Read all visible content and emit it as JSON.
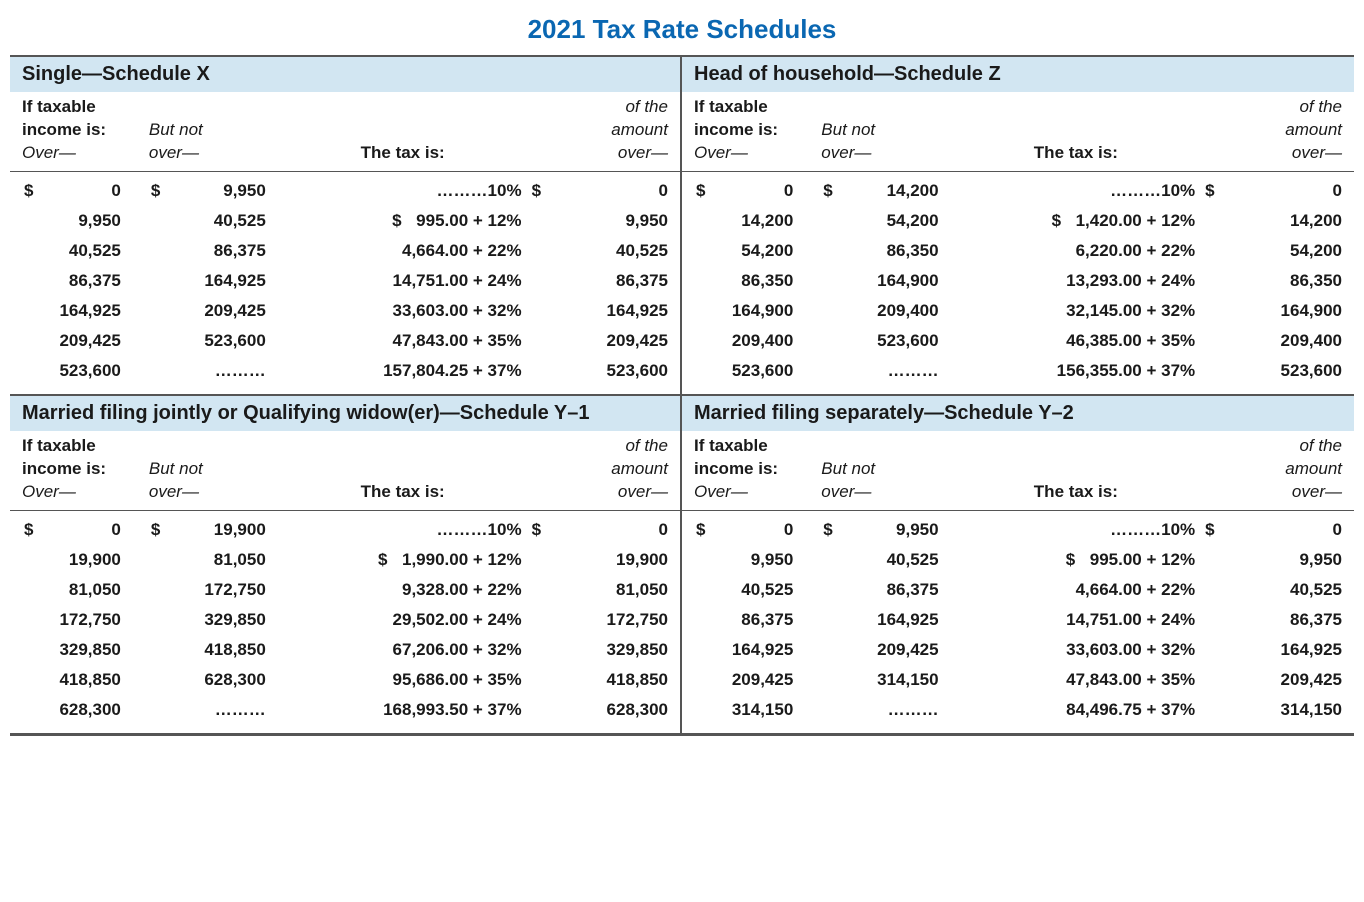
{
  "title": "2021 Tax Rate Schedules",
  "colors": {
    "title": "#0a67b2",
    "header_bg": "#d2e6f2",
    "border": "#555555",
    "text": "#1a1a1a",
    "page_bg": "#ffffff"
  },
  "headers": {
    "col1_line1": "If taxable",
    "col1_line2": "income is:",
    "col1_line3": "Over—",
    "col2_line1": "But not",
    "col2_line2": "over—",
    "col3": "The tax is:",
    "col4_line1": "of the",
    "col4_line2": "amount",
    "col4_line3": "over—"
  },
  "dots_placeholder": "………",
  "schedules": [
    {
      "title": "Single—Schedule X",
      "position": "top-left",
      "rows": [
        {
          "over_dollar": "$",
          "over": "0",
          "butnot_dollar": "$",
          "butnot": "9,950",
          "tax_dollar": "",
          "tax": "………10%",
          "ofamt_dollar": "$",
          "ofamt": "0"
        },
        {
          "over_dollar": "",
          "over": "9,950",
          "butnot_dollar": "",
          "butnot": "40,525",
          "tax_dollar": "$",
          "tax": "995.00 + 12%",
          "ofamt_dollar": "",
          "ofamt": "9,950"
        },
        {
          "over_dollar": "",
          "over": "40,525",
          "butnot_dollar": "",
          "butnot": "86,375",
          "tax_dollar": "",
          "tax": "4,664.00 + 22%",
          "ofamt_dollar": "",
          "ofamt": "40,525"
        },
        {
          "over_dollar": "",
          "over": "86,375",
          "butnot_dollar": "",
          "butnot": "164,925",
          "tax_dollar": "",
          "tax": "14,751.00 + 24%",
          "ofamt_dollar": "",
          "ofamt": "86,375"
        },
        {
          "over_dollar": "",
          "over": "164,925",
          "butnot_dollar": "",
          "butnot": "209,425",
          "tax_dollar": "",
          "tax": "33,603.00 + 32%",
          "ofamt_dollar": "",
          "ofamt": "164,925"
        },
        {
          "over_dollar": "",
          "over": "209,425",
          "butnot_dollar": "",
          "butnot": "523,600",
          "tax_dollar": "",
          "tax": "47,843.00 + 35%",
          "ofamt_dollar": "",
          "ofamt": "209,425"
        },
        {
          "over_dollar": "",
          "over": "523,600",
          "butnot_dollar": "",
          "butnot": "………",
          "tax_dollar": "",
          "tax": "157,804.25 + 37%",
          "ofamt_dollar": "",
          "ofamt": "523,600"
        }
      ]
    },
    {
      "title": "Head of household—Schedule Z",
      "position": "top-right",
      "rows": [
        {
          "over_dollar": "$",
          "over": "0",
          "butnot_dollar": "$",
          "butnot": "14,200",
          "tax_dollar": "",
          "tax": "………10%",
          "ofamt_dollar": "$",
          "ofamt": "0"
        },
        {
          "over_dollar": "",
          "over": "14,200",
          "butnot_dollar": "",
          "butnot": "54,200",
          "tax_dollar": "$",
          "tax": "1,420.00 + 12%",
          "ofamt_dollar": "",
          "ofamt": "14,200"
        },
        {
          "over_dollar": "",
          "over": "54,200",
          "butnot_dollar": "",
          "butnot": "86,350",
          "tax_dollar": "",
          "tax": "6,220.00 + 22%",
          "ofamt_dollar": "",
          "ofamt": "54,200"
        },
        {
          "over_dollar": "",
          "over": "86,350",
          "butnot_dollar": "",
          "butnot": "164,900",
          "tax_dollar": "",
          "tax": "13,293.00 + 24%",
          "ofamt_dollar": "",
          "ofamt": "86,350"
        },
        {
          "over_dollar": "",
          "over": "164,900",
          "butnot_dollar": "",
          "butnot": "209,400",
          "tax_dollar": "",
          "tax": "32,145.00 + 32%",
          "ofamt_dollar": "",
          "ofamt": "164,900"
        },
        {
          "over_dollar": "",
          "over": "209,400",
          "butnot_dollar": "",
          "butnot": "523,600",
          "tax_dollar": "",
          "tax": "46,385.00 + 35%",
          "ofamt_dollar": "",
          "ofamt": "209,400"
        },
        {
          "over_dollar": "",
          "over": "523,600",
          "butnot_dollar": "",
          "butnot": "………",
          "tax_dollar": "",
          "tax": "156,355.00 + 37%",
          "ofamt_dollar": "",
          "ofamt": "523,600"
        }
      ]
    },
    {
      "title": "Married filing jointly or Qualifying widow(er)—Schedule Y–1",
      "position": "bottom-left",
      "rows": [
        {
          "over_dollar": "$",
          "over": "0",
          "butnot_dollar": "$",
          "butnot": "19,900",
          "tax_dollar": "",
          "tax": "………10%",
          "ofamt_dollar": "$",
          "ofamt": "0"
        },
        {
          "over_dollar": "",
          "over": "19,900",
          "butnot_dollar": "",
          "butnot": "81,050",
          "tax_dollar": "$",
          "tax": "1,990.00 + 12%",
          "ofamt_dollar": "",
          "ofamt": "19,900"
        },
        {
          "over_dollar": "",
          "over": "81,050",
          "butnot_dollar": "",
          "butnot": "172,750",
          "tax_dollar": "",
          "tax": "9,328.00 + 22%",
          "ofamt_dollar": "",
          "ofamt": "81,050"
        },
        {
          "over_dollar": "",
          "over": "172,750",
          "butnot_dollar": "",
          "butnot": "329,850",
          "tax_dollar": "",
          "tax": "29,502.00 + 24%",
          "ofamt_dollar": "",
          "ofamt": "172,750"
        },
        {
          "over_dollar": "",
          "over": "329,850",
          "butnot_dollar": "",
          "butnot": "418,850",
          "tax_dollar": "",
          "tax": "67,206.00 + 32%",
          "ofamt_dollar": "",
          "ofamt": "329,850"
        },
        {
          "over_dollar": "",
          "over": "418,850",
          "butnot_dollar": "",
          "butnot": "628,300",
          "tax_dollar": "",
          "tax": "95,686.00 + 35%",
          "ofamt_dollar": "",
          "ofamt": "418,850"
        },
        {
          "over_dollar": "",
          "over": "628,300",
          "butnot_dollar": "",
          "butnot": "………",
          "tax_dollar": "",
          "tax": "168,993.50 + 37%",
          "ofamt_dollar": "",
          "ofamt": "628,300"
        }
      ]
    },
    {
      "title": "Married filing separately—Schedule Y–2",
      "position": "bottom-right",
      "rows": [
        {
          "over_dollar": "$",
          "over": "0",
          "butnot_dollar": "$",
          "butnot": "9,950",
          "tax_dollar": "",
          "tax": "………10%",
          "ofamt_dollar": "$",
          "ofamt": "0"
        },
        {
          "over_dollar": "",
          "over": "9,950",
          "butnot_dollar": "",
          "butnot": "40,525",
          "tax_dollar": "$",
          "tax": "995.00 + 12%",
          "ofamt_dollar": "",
          "ofamt": "9,950"
        },
        {
          "over_dollar": "",
          "over": "40,525",
          "butnot_dollar": "",
          "butnot": "86,375",
          "tax_dollar": "",
          "tax": "4,664.00 + 22%",
          "ofamt_dollar": "",
          "ofamt": "40,525"
        },
        {
          "over_dollar": "",
          "over": "86,375",
          "butnot_dollar": "",
          "butnot": "164,925",
          "tax_dollar": "",
          "tax": "14,751.00 + 24%",
          "ofamt_dollar": "",
          "ofamt": "86,375"
        },
        {
          "over_dollar": "",
          "over": "164,925",
          "butnot_dollar": "",
          "butnot": "209,425",
          "tax_dollar": "",
          "tax": "33,603.00 + 32%",
          "ofamt_dollar": "",
          "ofamt": "164,925"
        },
        {
          "over_dollar": "",
          "over": "209,425",
          "butnot_dollar": "",
          "butnot": "314,150",
          "tax_dollar": "",
          "tax": "47,843.00 + 35%",
          "ofamt_dollar": "",
          "ofamt": "209,425"
        },
        {
          "over_dollar": "",
          "over": "314,150",
          "butnot_dollar": "",
          "butnot": "………",
          "tax_dollar": "",
          "tax": "84,496.75 + 37%",
          "ofamt_dollar": "",
          "ofamt": "314,150"
        }
      ]
    }
  ]
}
